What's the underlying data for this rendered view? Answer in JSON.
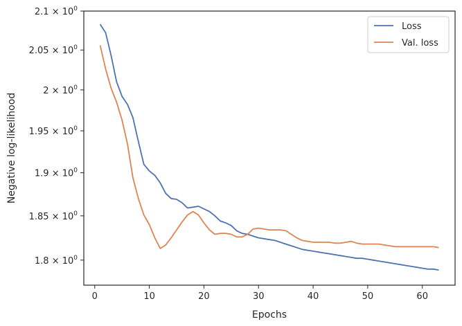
{
  "chart_data": {
    "type": "line",
    "title": "",
    "xlabel": "Epochs",
    "ylabel": "Negative log-likelihood",
    "xlim": [
      -2,
      66
    ],
    "ylim": [
      1.7723,
      2.1
    ],
    "yscale": "log",
    "grid": false,
    "legend_position": "top-right",
    "x_ticks": [
      0,
      10,
      20,
      30,
      40,
      50,
      60
    ],
    "y_ticks": [
      {
        "value": 1.8,
        "mantissa": "1.8",
        "base": "10",
        "exp": "0"
      },
      {
        "value": 1.85,
        "mantissa": "1.85",
        "base": "10",
        "exp": "0"
      },
      {
        "value": 1.9,
        "mantissa": "1.9",
        "base": "10",
        "exp": "0"
      },
      {
        "value": 1.95,
        "mantissa": "1.95",
        "base": "10",
        "exp": "0"
      },
      {
        "value": 2.0,
        "mantissa": "2",
        "base": "10",
        "exp": "0"
      },
      {
        "value": 2.05,
        "mantissa": "2.05",
        "base": "10",
        "exp": "0"
      },
      {
        "value": 2.1,
        "mantissa": "2.1",
        "base": "10",
        "exp": "0"
      }
    ],
    "x": [
      1,
      2,
      3,
      4,
      5,
      6,
      7,
      8,
      9,
      10,
      11,
      12,
      13,
      14,
      15,
      16,
      17,
      18,
      19,
      20,
      21,
      22,
      23,
      24,
      25,
      26,
      27,
      28,
      29,
      30,
      31,
      32,
      33,
      34,
      35,
      36,
      37,
      38,
      39,
      40,
      41,
      42,
      43,
      44,
      45,
      46,
      47,
      48,
      49,
      50,
      51,
      52,
      53,
      54,
      55,
      56,
      57,
      58,
      59,
      60,
      61,
      62,
      63
    ],
    "series": [
      {
        "name": "Loss",
        "color": "#4c72b0",
        "values": [
          2.083,
          2.072,
          2.043,
          2.01,
          1.992,
          1.982,
          1.966,
          1.937,
          1.91,
          1.902,
          1.897,
          1.888,
          1.876,
          1.87,
          1.869,
          1.865,
          1.859,
          1.86,
          1.861,
          1.858,
          1.855,
          1.85,
          1.844,
          1.842,
          1.839,
          1.833,
          1.83,
          1.829,
          1.827,
          1.825,
          1.824,
          1.823,
          1.822,
          1.82,
          1.818,
          1.816,
          1.814,
          1.812,
          1.811,
          1.81,
          1.809,
          1.808,
          1.807,
          1.806,
          1.805,
          1.804,
          1.803,
          1.802,
          1.802,
          1.801,
          1.8,
          1.799,
          1.798,
          1.797,
          1.796,
          1.795,
          1.794,
          1.793,
          1.792,
          1.791,
          1.79,
          1.79,
          1.789
        ]
      },
      {
        "name": "Val. loss",
        "color": "#dd8452",
        "values": [
          2.056,
          2.026,
          2.002,
          1.985,
          1.963,
          1.934,
          1.894,
          1.87,
          1.851,
          1.84,
          1.825,
          1.813,
          1.817,
          1.825,
          1.834,
          1.843,
          1.851,
          1.855,
          1.851,
          1.842,
          1.834,
          1.829,
          1.83,
          1.83,
          1.829,
          1.826,
          1.826,
          1.829,
          1.835,
          1.836,
          1.835,
          1.834,
          1.834,
          1.834,
          1.833,
          1.829,
          1.825,
          1.822,
          1.821,
          1.82,
          1.82,
          1.82,
          1.82,
          1.819,
          1.819,
          1.82,
          1.821,
          1.819,
          1.818,
          1.818,
          1.818,
          1.818,
          1.817,
          1.816,
          1.815,
          1.815,
          1.815,
          1.815,
          1.815,
          1.815,
          1.815,
          1.815,
          1.814
        ]
      }
    ]
  }
}
